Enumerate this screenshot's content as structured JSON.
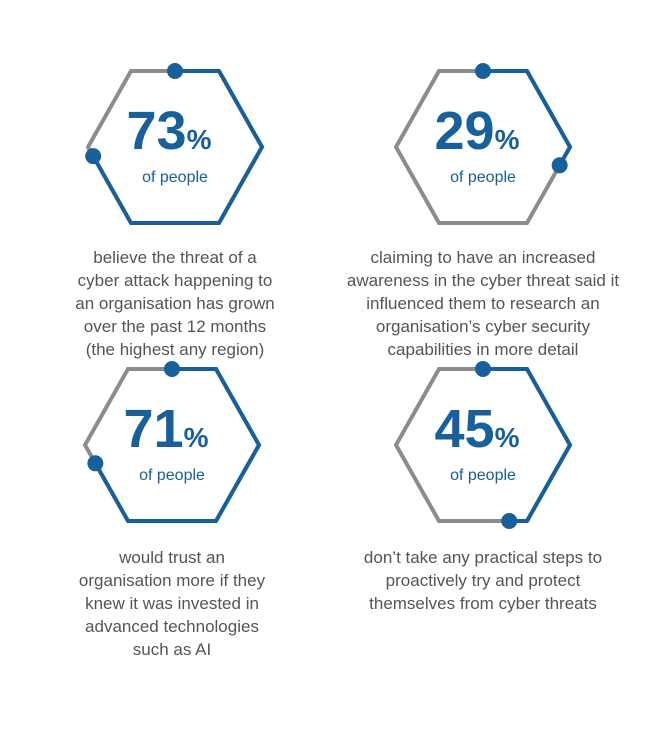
{
  "items": [
    {
      "value": 73,
      "percent_sign": "%",
      "sub": "of people",
      "caption": [
        "believe the threat of a",
        "cyber attack happening to",
        "an organisation has grown",
        "over the past 12 months",
        "(the highest any region)"
      ]
    },
    {
      "value": 29,
      "percent_sign": "%",
      "sub": "of people",
      "caption": [
        "claiming to have an increased",
        "awareness in the cyber threat said it",
        "influenced them to research an",
        "organisation’s cyber security",
        "capabilities in more detail"
      ]
    },
    {
      "value": 71,
      "percent_sign": "%",
      "sub": "of people",
      "caption": [
        "would trust an",
        "organisation more if they",
        "knew it was invested in",
        "advanced technologies",
        "such as AI"
      ]
    },
    {
      "value": 45,
      "percent_sign": "%",
      "sub": "of people",
      "caption": [
        "don’t take any practical steps to",
        "proactively  try and protect",
        "themselves from cyber threats"
      ]
    }
  ]
}
